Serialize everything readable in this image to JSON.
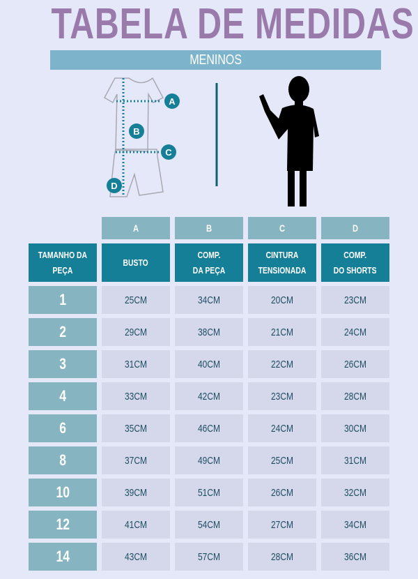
{
  "title": "TABELA DE MEDIDAS",
  "subtitle": "MENINOS",
  "diagram": {
    "markers": [
      "A",
      "B",
      "C",
      "D"
    ]
  },
  "colors": {
    "title": "#9a7aab",
    "banner": "#7db4cb",
    "header": "#167f98",
    "letter_cells": "#86b4c0",
    "value_cells": "#d5d8ea",
    "value_text": "#1f4e63"
  },
  "table": {
    "letters": [
      "A",
      "B",
      "C",
      "D"
    ],
    "headers": [
      [
        "TAMANHO DA",
        "PEÇA"
      ],
      [
        "BUSTO",
        ""
      ],
      [
        "COMP.",
        "DA PEÇA"
      ],
      [
        "CINTURA",
        "TENSIONADA"
      ],
      [
        "COMP.",
        "DO SHORTS"
      ]
    ],
    "rows": [
      [
        "1",
        "25CM",
        "34CM",
        "20CM",
        "23CM"
      ],
      [
        "2",
        "29CM",
        "38CM",
        "21CM",
        "24CM"
      ],
      [
        "3",
        "31CM",
        "40CM",
        "22CM",
        "26CM"
      ],
      [
        "4",
        "33CM",
        "42CM",
        "23CM",
        "28CM"
      ],
      [
        "6",
        "35CM",
        "46CM",
        "24CM",
        "30CM"
      ],
      [
        "8",
        "37CM",
        "49CM",
        "25CM",
        "31CM"
      ],
      [
        "10",
        "39CM",
        "51CM",
        "26CM",
        "32CM"
      ],
      [
        "12",
        "41CM",
        "54CM",
        "27CM",
        "34CM"
      ],
      [
        "14",
        "43CM",
        "57CM",
        "28CM",
        "36CM"
      ]
    ]
  }
}
